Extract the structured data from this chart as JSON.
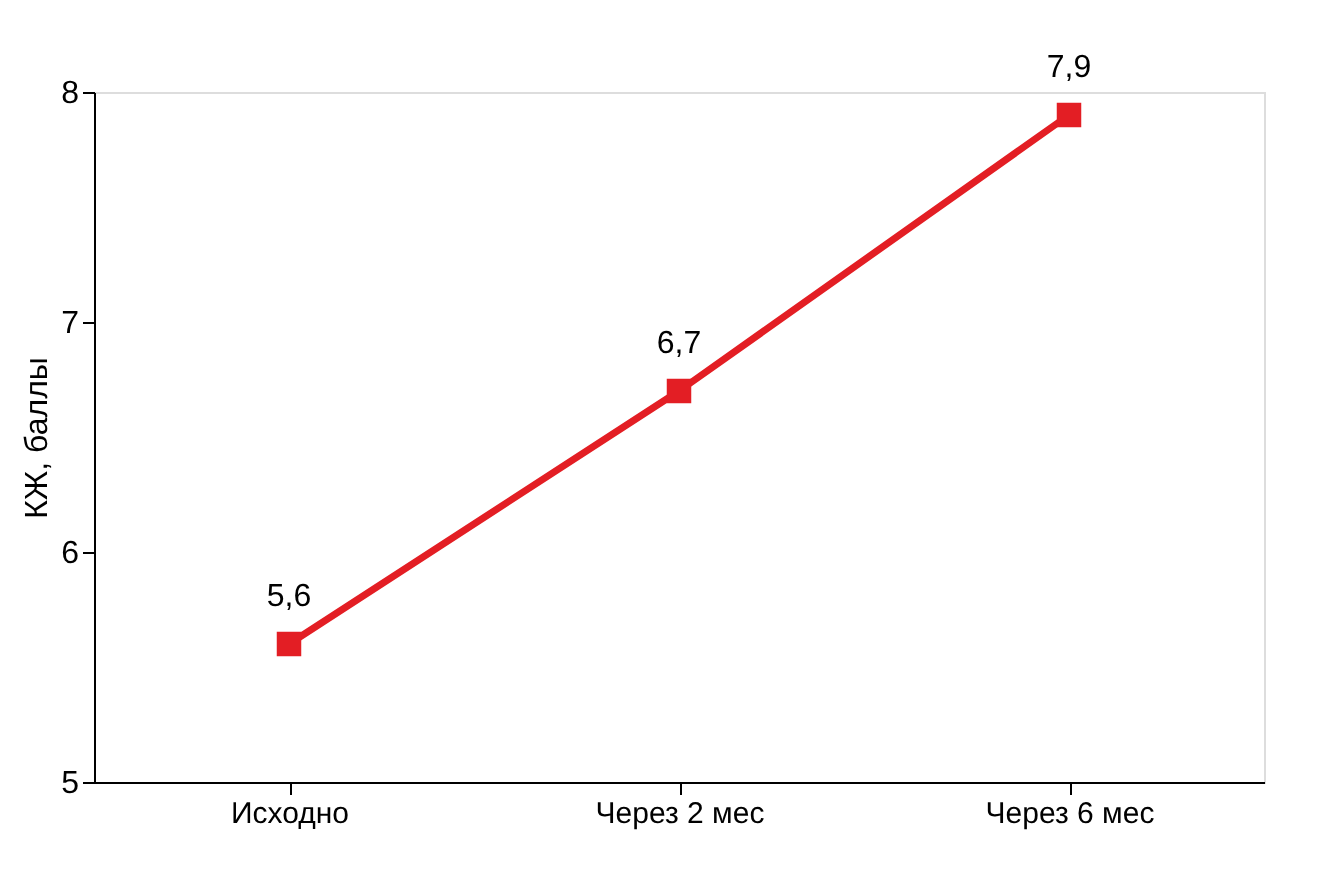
{
  "chart_data": {
    "type": "line",
    "ylabel": "КЖ, баллы",
    "categories": [
      "Исходно",
      "Через 2 мес",
      "Через 6 мес"
    ],
    "series": [
      {
        "color": "#e31e24",
        "values": [
          5.6,
          6.7,
          7.9
        ],
        "value_labels": [
          "5,6",
          "6,7",
          "7,9"
        ]
      }
    ],
    "ylim": [
      5,
      8
    ],
    "yticks": [
      5,
      6,
      7,
      8
    ],
    "grid": false,
    "marker": "square",
    "line_style": "solid"
  }
}
